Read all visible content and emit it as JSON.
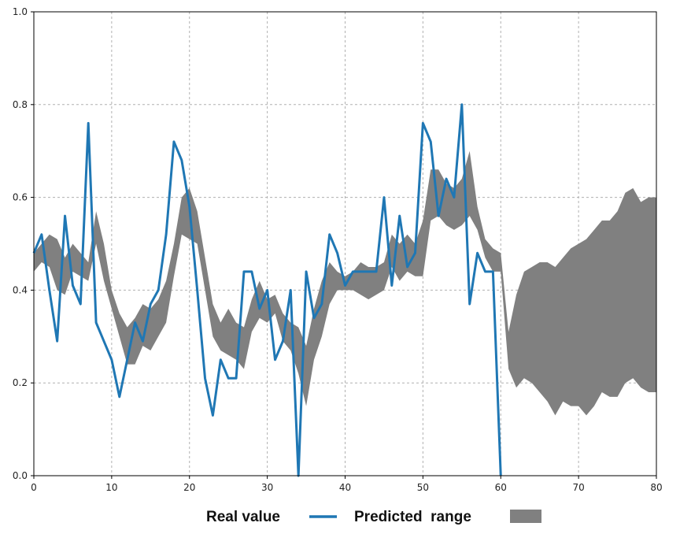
{
  "chart_data": {
    "type": "line",
    "title": "",
    "xlabel": "",
    "ylabel": "",
    "xlim": [
      0,
      80
    ],
    "ylim": [
      0.0,
      1.0
    ],
    "x_ticks": [
      "0",
      "10",
      "20",
      "30",
      "40",
      "50",
      "60",
      "70",
      "80"
    ],
    "y_ticks": [
      "0.0",
      "0.2",
      "0.4",
      "0.6",
      "0.8",
      "1.0"
    ],
    "grid": true,
    "legend_position": "bottom",
    "series": [
      {
        "name": "Real value",
        "type": "line",
        "color": "#1f77b4",
        "x": [
          0,
          1,
          2,
          3,
          4,
          5,
          6,
          7,
          8,
          9,
          10,
          11,
          12,
          13,
          14,
          15,
          16,
          17,
          18,
          19,
          20,
          21,
          22,
          23,
          24,
          25,
          26,
          27,
          28,
          29,
          30,
          31,
          32,
          33,
          34,
          35,
          36,
          37,
          38,
          39,
          40,
          41,
          42,
          43,
          44,
          45,
          46,
          47,
          48,
          49,
          50,
          51,
          52,
          53,
          54,
          55,
          56,
          57,
          58,
          59,
          60
        ],
        "y": [
          0.48,
          0.52,
          0.4,
          0.29,
          0.56,
          0.41,
          0.37,
          0.76,
          0.33,
          0.29,
          0.25,
          0.17,
          0.25,
          0.33,
          0.29,
          0.37,
          0.4,
          0.52,
          0.72,
          0.68,
          0.58,
          0.4,
          0.21,
          0.13,
          0.25,
          0.21,
          0.21,
          0.44,
          0.44,
          0.36,
          0.4,
          0.25,
          0.29,
          0.4,
          0.0,
          0.44,
          0.34,
          0.37,
          0.52,
          0.48,
          0.41,
          0.44,
          0.44,
          0.44,
          0.44,
          0.6,
          0.41,
          0.56,
          0.45,
          0.48,
          0.76,
          0.72,
          0.56,
          0.64,
          0.6,
          0.8,
          0.37,
          0.48,
          0.44,
          0.44,
          0.0
        ]
      },
      {
        "name": "Predicted  range",
        "type": "area-range",
        "color": "#808080",
        "x": [
          0,
          1,
          2,
          3,
          4,
          5,
          6,
          7,
          8,
          9,
          10,
          11,
          12,
          13,
          14,
          15,
          16,
          17,
          18,
          19,
          20,
          21,
          22,
          23,
          24,
          25,
          26,
          27,
          28,
          29,
          30,
          31,
          32,
          33,
          34,
          35,
          36,
          37,
          38,
          39,
          40,
          41,
          42,
          43,
          44,
          45,
          46,
          47,
          48,
          49,
          50,
          51,
          52,
          53,
          54,
          55,
          56,
          57,
          58,
          59,
          60,
          61,
          62,
          63,
          64,
          65,
          66,
          67,
          68,
          69,
          70,
          71,
          72,
          73,
          74,
          75,
          76,
          77,
          78,
          79,
          80
        ],
        "upper": [
          0.48,
          0.5,
          0.52,
          0.51,
          0.47,
          0.5,
          0.48,
          0.46,
          0.57,
          0.5,
          0.4,
          0.35,
          0.32,
          0.34,
          0.37,
          0.36,
          0.38,
          0.42,
          0.5,
          0.6,
          0.62,
          0.57,
          0.47,
          0.37,
          0.33,
          0.36,
          0.33,
          0.32,
          0.38,
          0.42,
          0.38,
          0.39,
          0.35,
          0.33,
          0.32,
          0.28,
          0.36,
          0.42,
          0.46,
          0.44,
          0.43,
          0.44,
          0.46,
          0.45,
          0.45,
          0.46,
          0.52,
          0.5,
          0.52,
          0.5,
          0.55,
          0.66,
          0.66,
          0.63,
          0.62,
          0.64,
          0.7,
          0.58,
          0.51,
          0.49,
          0.48,
          0.31,
          0.39,
          0.44,
          0.45,
          0.46,
          0.46,
          0.45,
          0.47,
          0.49,
          0.5,
          0.51,
          0.53,
          0.55,
          0.55,
          0.57,
          0.61,
          0.62,
          0.59,
          0.6,
          0.6
        ],
        "lower": [
          0.44,
          0.46,
          0.45,
          0.4,
          0.39,
          0.44,
          0.43,
          0.42,
          0.5,
          0.42,
          0.36,
          0.3,
          0.24,
          0.24,
          0.28,
          0.27,
          0.3,
          0.33,
          0.43,
          0.52,
          0.51,
          0.5,
          0.4,
          0.3,
          0.27,
          0.26,
          0.25,
          0.23,
          0.31,
          0.34,
          0.33,
          0.35,
          0.29,
          0.27,
          0.22,
          0.15,
          0.25,
          0.3,
          0.37,
          0.4,
          0.4,
          0.4,
          0.39,
          0.38,
          0.39,
          0.4,
          0.45,
          0.42,
          0.44,
          0.43,
          0.43,
          0.55,
          0.56,
          0.54,
          0.53,
          0.54,
          0.56,
          0.53,
          0.47,
          0.44,
          0.44,
          0.23,
          0.19,
          0.21,
          0.2,
          0.18,
          0.16,
          0.13,
          0.16,
          0.15,
          0.15,
          0.13,
          0.15,
          0.18,
          0.17,
          0.17,
          0.2,
          0.21,
          0.19,
          0.18,
          0.18
        ]
      }
    ]
  }
}
